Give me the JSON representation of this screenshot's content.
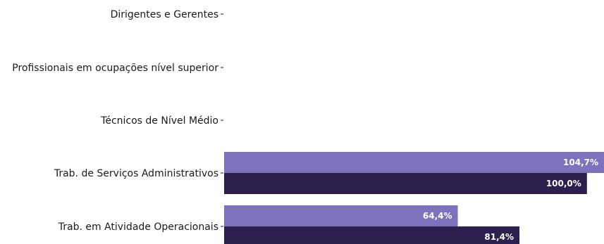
{
  "chart_data": {
    "type": "bar",
    "orientation": "horizontal",
    "categories": [
      "Dirigentes e Gerentes",
      "Profissionais em ocupações nível superior",
      "Técnicos de Nível Médio",
      "Trab. de Serviços Administrativos",
      "Trab. em Atividade Operacionais"
    ],
    "series": [
      {
        "values": [
          null,
          null,
          null,
          104.7,
          64.4
        ],
        "labels": [
          "",
          "",
          "",
          "104,7%",
          "64,4%"
        ],
        "color": "#7f72bd"
      },
      {
        "values": [
          null,
          null,
          null,
          100.0,
          81.4
        ],
        "labels": [
          "",
          "",
          "",
          "100,0%",
          "81,4%"
        ],
        "color": "#2d1f4e"
      }
    ],
    "xlim": [
      0,
      104.7
    ],
    "grid": false,
    "legend": "none"
  }
}
